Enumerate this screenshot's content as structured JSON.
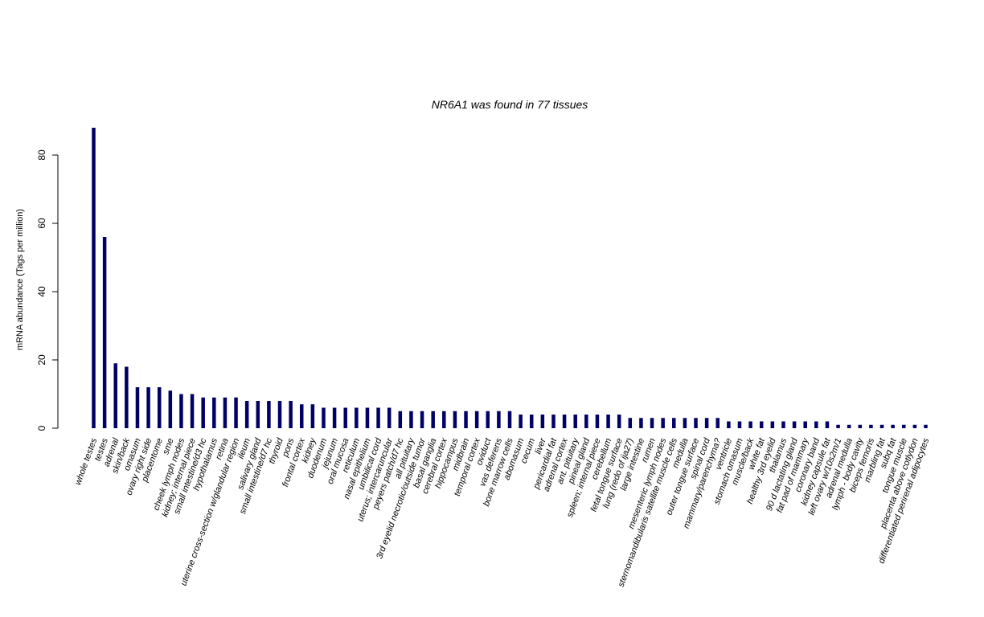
{
  "chart_data": {
    "type": "bar",
    "title": "NR6A1  was found in  77  tissues",
    "xlabel": "",
    "ylabel": "mRNA abundance (Tags per million)",
    "ylim": [
      0,
      88
    ],
    "yticks": [
      "0",
      "20",
      "40",
      "60",
      "80"
    ],
    "bar_color": "#000066",
    "grid": false,
    "categories": [
      "whole testes",
      "testes",
      "adrenal",
      "skin/back",
      "omasum",
      "ovary right side",
      "placentome",
      "sme",
      "cheek lymph nodes",
      "kidney; internal piece",
      "small intestine/d3 hc",
      "hypothalamus",
      "retina",
      "uterine cross-section w/glandular region",
      "ileum",
      "salivary gland",
      "small intestine/d7 hc",
      "thyroid",
      "pons",
      "frontal cortex",
      "kidney",
      "duodenum",
      "jejunum",
      "oral mucosa",
      "reticulum",
      "nasal epithelium",
      "umbilical cord",
      "uterus; intercaruncular",
      "peyers patch/d7 hc",
      "all pituitary",
      "3rd eyelid necrotic/outside tumor",
      "basal ganglia",
      "cerebral cortex",
      "hippocampus",
      "midbrain",
      "temporal cortex",
      "oviduct",
      "vas deferens",
      "bone marrow cells",
      "abomasum",
      "cecum",
      "liver",
      "pericardial fat",
      "adrenal cortex",
      "ant. pituitary",
      "pineal gland",
      "spleen; internal piece",
      "cerebellum",
      "fetal tongue surface",
      "lung (redo of ija27)",
      "large intestine",
      "rumen",
      "mesenteric lymph nodes",
      "sternomandibularis satellite muscle cells",
      "medulla",
      "outer tongue surface",
      "spinal cord",
      "mammary/parenchyma?",
      "ventricle",
      "stomach omasum",
      "muscle/back",
      "white fat",
      "healthy 3rd eyelid",
      "thalamus",
      "90 d lactating gland",
      "fat pad of mammary",
      "coronary band",
      "kidney capsule fat",
      "left ovary w/10s2m/1",
      "adrenal medulla",
      "lymph - body cavity",
      "biceps femoris",
      "marbling fat",
      "subq fat",
      "tongue muscle",
      "placenta above cotlydon",
      "differentiated perirenal adipocytes"
    ],
    "values": [
      88,
      56,
      19,
      18,
      12,
      12,
      12,
      11,
      10,
      10,
      9,
      9,
      9,
      9,
      8,
      8,
      8,
      8,
      8,
      7,
      7,
      6,
      6,
      6,
      6,
      6,
      6,
      6,
      5,
      5,
      5,
      5,
      5,
      5,
      5,
      5,
      5,
      5,
      5,
      4,
      4,
      4,
      4,
      4,
      4,
      4,
      4,
      4,
      4,
      3,
      3,
      3,
      3,
      3,
      3,
      3,
      3,
      3,
      2,
      2,
      2,
      2,
      2,
      2,
      2,
      2,
      2,
      2,
      1,
      1,
      1,
      1,
      1,
      1,
      1,
      1,
      1
    ]
  }
}
